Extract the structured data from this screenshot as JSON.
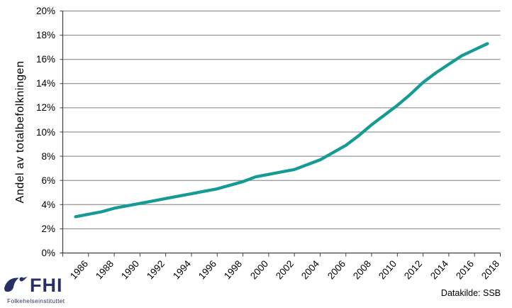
{
  "chart_data": {
    "type": "line",
    "title": "",
    "ylabel": "Andel av totalbefolkningen",
    "xlabel": "",
    "x": [
      1986,
      1987,
      1988,
      1989,
      1990,
      1991,
      1992,
      1993,
      1994,
      1995,
      1996,
      1997,
      1998,
      1999,
      2000,
      2001,
      2002,
      2003,
      2004,
      2005,
      2006,
      2007,
      2008,
      2009,
      2010,
      2011,
      2012,
      2013,
      2014,
      2015,
      2016,
      2017,
      2018
    ],
    "series": [
      {
        "name": "",
        "values": [
          3.0,
          3.2,
          3.4,
          3.7,
          3.9,
          4.1,
          4.3,
          4.5,
          4.7,
          4.9,
          5.1,
          5.3,
          5.6,
          5.9,
          6.3,
          6.5,
          6.7,
          6.9,
          7.3,
          7.7,
          8.3,
          8.9,
          9.7,
          10.6,
          11.4,
          12.2,
          13.1,
          14.1,
          14.9,
          15.6,
          16.3,
          16.8,
          17.3
        ]
      }
    ],
    "ylim": [
      0,
      20
    ],
    "ytick_step": 2,
    "ytick_labels": [
      "0%",
      "2%",
      "4%",
      "6%",
      "8%",
      "10%",
      "12%",
      "14%",
      "16%",
      "18%",
      "20%"
    ],
    "xtick_labels": [
      "1986",
      "1988",
      "1990",
      "1992",
      "1994",
      "1996",
      "1998",
      "2000",
      "2002",
      "2004",
      "2006",
      "2008",
      "2010",
      "2012",
      "2014",
      "2016",
      "2018"
    ],
    "grid": true,
    "legend": "none",
    "line_color": "#149C94"
  },
  "footer": {
    "source": "Datakilde: SSB"
  },
  "logo": {
    "abbr": "FHI",
    "name": "Folkehelseinstituttet"
  },
  "colors": {
    "line": "#149C94",
    "grid": "#7F7F7F",
    "axis": "#3F3F3F",
    "text": "#000000",
    "logo_navy": "#272F66",
    "background": "#FFFFFF"
  }
}
